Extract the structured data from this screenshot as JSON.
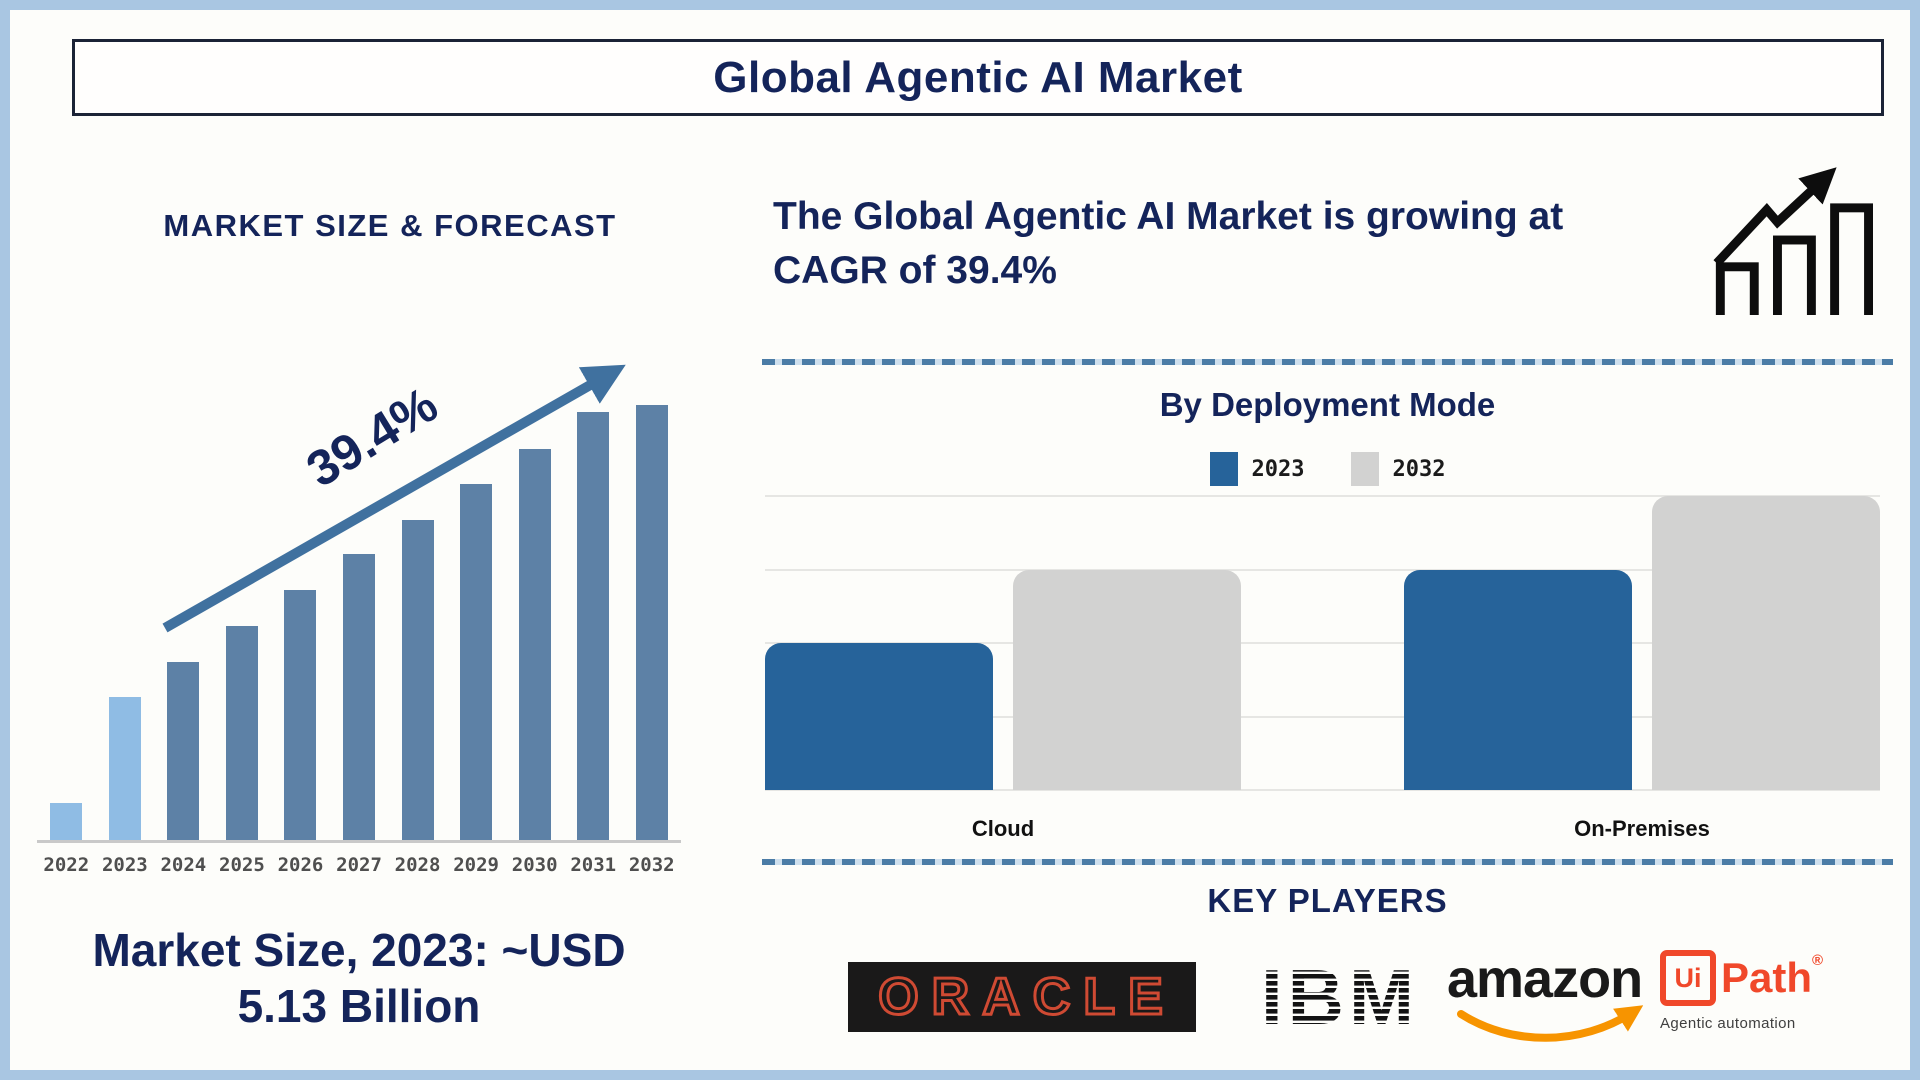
{
  "title": "Global Agentic AI Market",
  "left": {
    "footer_line1": "Market Size, 2023: ~USD",
    "footer_line2": "5.13 Billion"
  },
  "right": {
    "cagr_line1": "The Global Agentic AI Market is growing at",
    "cagr_line2": "CAGR of 39.4%",
    "players_heading": "KEY PLAYERS"
  },
  "chart_data": [
    {
      "type": "bar",
      "title": "MARKET SIZE & FORECAST",
      "categories": [
        "2022",
        "2023",
        "2024",
        "2025",
        "2026",
        "2027",
        "2028",
        "2029",
        "2030",
        "2031",
        "2032"
      ],
      "values": [
        8.6,
        32.9,
        41.0,
        49.3,
        57.4,
        65.7,
        73.6,
        81.9,
        90.0,
        98.4,
        100
      ],
      "value_note": "stylized relative bar heights (% of tallest 2032 bar); no numeric y-axis shown",
      "annotation": "39.4%",
      "highlight_years": [
        "2022",
        "2023"
      ],
      "xlabel": "",
      "ylabel": "",
      "ylim": [
        0,
        100
      ],
      "grid": false,
      "bar_colors": {
        "highlight": "#8fbce4",
        "default": "#5d81a6"
      }
    },
    {
      "type": "bar",
      "title": "By Deployment Mode",
      "categories": [
        "Cloud",
        "On-Premises"
      ],
      "series": [
        {
          "name": "2023",
          "values": [
            2,
            3
          ],
          "color": "#26639a"
        },
        {
          "name": "2032",
          "values": [
            3,
            4
          ],
          "color": "#d2d2d1"
        }
      ],
      "value_note": "no numeric axis shown; values are relative gridline units (bar tops align to gridlines)",
      "ylim": [
        0,
        4
      ],
      "legend_position": "top",
      "grid": true
    }
  ],
  "key_players": {
    "oracle": "ORACLE",
    "ibm": "IBM",
    "amazon": "amazon",
    "uipath_box": "Ui",
    "uipath_word": "Path",
    "uipath_reg": "®",
    "uipath_tagline": "Agentic automation"
  },
  "colors": {
    "navy": "#14245a",
    "steel_bar": "#5d81a6",
    "light_bar": "#8fbce4",
    "arrow_blue": "#40719f",
    "deploy_blue": "#26639a",
    "deploy_gray": "#d2d2d1",
    "gridline": "#e6e6e3",
    "divider_dash": "#4b7ca6",
    "outer_border": "#a9c6e2",
    "oracle_red": "#cf4a33",
    "oracle_bg": "#1a1919",
    "ibm_black": "#131313",
    "amazon_orange": "#f79400",
    "uipath_orange": "#f0482a"
  }
}
